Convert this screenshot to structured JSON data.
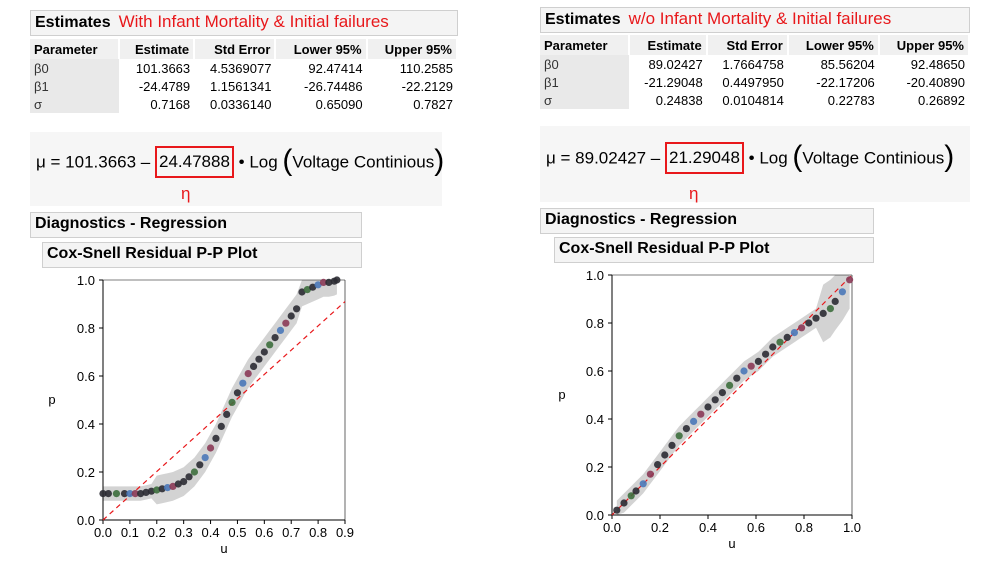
{
  "left": {
    "title": "Estimates",
    "subtitle": "With Infant Mortality & Initial failures",
    "columns": [
      "Parameter",
      "Estimate",
      "Std Error",
      "Lower 95%",
      "Upper 95%"
    ],
    "rows": [
      [
        "β0",
        "101.3663",
        "4.5369077",
        "92.47414",
        "110.2585"
      ],
      [
        "β1",
        "-24.4789",
        "1.1561341",
        "-26.74486",
        "-22.2129"
      ],
      [
        "σ",
        "0.7168",
        "0.0336140",
        "0.65090",
        "0.7827"
      ]
    ],
    "formula_prefix": "μ = 101.3663 –",
    "formula_boxed": "24.47888",
    "formula_log": "• Log",
    "formula_arg": "Voltage Continious",
    "eta": "η",
    "diagnostics": "Diagnostics - Regression",
    "plot_title": "Cox-Snell Residual P-P Plot",
    "xlabel": "u",
    "ylabel": "p"
  },
  "right": {
    "title": "Estimates",
    "subtitle": "w/o Infant Mortality & Initial failures",
    "columns": [
      "Parameter",
      "Estimate",
      "Std Error",
      "Lower 95%",
      "Upper 95%"
    ],
    "rows": [
      [
        "β0",
        "89.02427",
        "1.7664758",
        "85.56204",
        "92.48650"
      ],
      [
        "β1",
        "-21.29048",
        "0.4497950",
        "-22.17206",
        "-20.40890"
      ],
      [
        "σ",
        "0.24838",
        "0.0104814",
        "0.22783",
        "0.26892"
      ]
    ],
    "formula_prefix": "μ = 89.02427 –",
    "formula_boxed": "21.29048",
    "formula_log": "• Log",
    "formula_arg": "Voltage Continious",
    "eta": "η",
    "diagnostics": "Diagnostics - Regression",
    "plot_title": "Cox-Snell Residual P-P Plot",
    "xlabel": "u",
    "ylabel": "p"
  },
  "chart_data": [
    {
      "type": "scatter",
      "title": "Cox-Snell Residual P-P Plot",
      "xlabel": "u",
      "ylabel": "p",
      "xlim": [
        0,
        0.9
      ],
      "ylim": [
        0,
        1.0
      ],
      "xticks": [
        "0.0",
        "0.1",
        "0.2",
        "0.3",
        "0.4",
        "0.5",
        "0.6",
        "0.7",
        "0.8",
        "0.9"
      ],
      "yticks": [
        "0.0",
        "0.2",
        "0.4",
        "0.6",
        "0.8",
        "1.0"
      ],
      "x": [
        0.0,
        0.02,
        0.05,
        0.08,
        0.1,
        0.12,
        0.14,
        0.16,
        0.18,
        0.2,
        0.22,
        0.24,
        0.26,
        0.28,
        0.3,
        0.32,
        0.34,
        0.36,
        0.38,
        0.4,
        0.42,
        0.44,
        0.46,
        0.48,
        0.5,
        0.52,
        0.54,
        0.56,
        0.58,
        0.6,
        0.62,
        0.64,
        0.66,
        0.68,
        0.7,
        0.72,
        0.74,
        0.76,
        0.78,
        0.8,
        0.82,
        0.84,
        0.86,
        0.87
      ],
      "y": [
        0.11,
        0.11,
        0.11,
        0.11,
        0.11,
        0.11,
        0.11,
        0.115,
        0.12,
        0.125,
        0.13,
        0.135,
        0.14,
        0.15,
        0.16,
        0.18,
        0.2,
        0.23,
        0.26,
        0.3,
        0.34,
        0.39,
        0.44,
        0.49,
        0.53,
        0.57,
        0.61,
        0.64,
        0.67,
        0.7,
        0.73,
        0.76,
        0.79,
        0.82,
        0.85,
        0.88,
        0.95,
        0.96,
        0.97,
        0.98,
        0.99,
        0.99,
        0.995,
        1.0
      ],
      "reference_line": {
        "x": [
          0,
          0.9
        ],
        "y": [
          0,
          0.91
        ]
      }
    },
    {
      "type": "scatter",
      "title": "Cox-Snell Residual P-P Plot",
      "xlabel": "u",
      "ylabel": "p",
      "xlim": [
        0,
        1.0
      ],
      "ylim": [
        0,
        1.0
      ],
      "xticks": [
        "0.0",
        "0.2",
        "0.4",
        "0.6",
        "0.8",
        "1.0"
      ],
      "yticks": [
        "0.0",
        "0.2",
        "0.4",
        "0.6",
        "0.8",
        "1.0"
      ],
      "x": [
        0.02,
        0.05,
        0.08,
        0.1,
        0.13,
        0.16,
        0.19,
        0.22,
        0.25,
        0.28,
        0.31,
        0.34,
        0.37,
        0.4,
        0.43,
        0.46,
        0.49,
        0.52,
        0.55,
        0.58,
        0.61,
        0.64,
        0.67,
        0.7,
        0.73,
        0.76,
        0.79,
        0.82,
        0.85,
        0.88,
        0.91,
        0.93,
        0.96,
        0.99
      ],
      "y": [
        0.02,
        0.05,
        0.08,
        0.1,
        0.13,
        0.17,
        0.21,
        0.25,
        0.29,
        0.33,
        0.36,
        0.39,
        0.42,
        0.45,
        0.48,
        0.51,
        0.54,
        0.57,
        0.6,
        0.62,
        0.64,
        0.67,
        0.7,
        0.72,
        0.74,
        0.76,
        0.78,
        0.8,
        0.82,
        0.84,
        0.86,
        0.89,
        0.93,
        0.98
      ],
      "reference_line": {
        "x": [
          0,
          1
        ],
        "y": [
          0,
          1
        ]
      }
    }
  ]
}
